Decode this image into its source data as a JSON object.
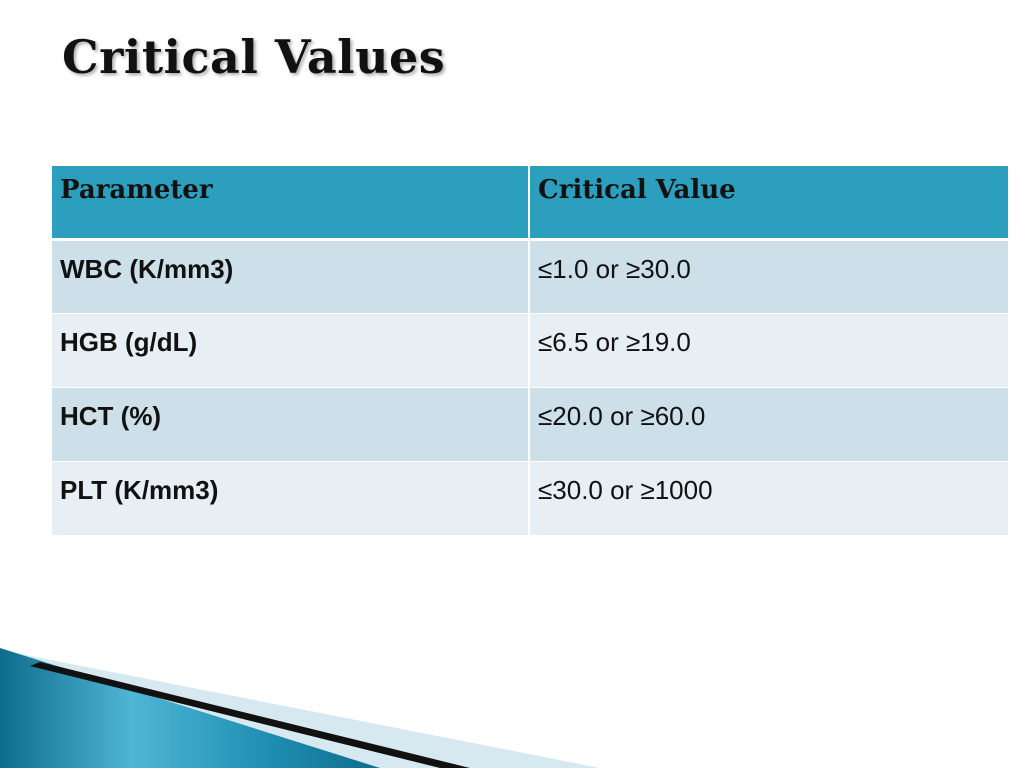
{
  "slide": {
    "title": "Critical Values"
  },
  "table": {
    "headers": [
      "Parameter",
      "Critical Value"
    ],
    "rows": [
      {
        "parameter": "WBC (K/mm3)",
        "critical_value": "≤1.0 or ≥30.0"
      },
      {
        "parameter": "HGB (g/dL)",
        "critical_value": "≤6.5 or ≥19.0"
      },
      {
        "parameter": "HCT (%)",
        "critical_value": "≤20.0 or ≥60.0"
      },
      {
        "parameter": "PLT (K/mm3)",
        "critical_value": "≤30.0 or ≥1000"
      }
    ]
  },
  "colors": {
    "header_bg": "#2c9fbe",
    "row_odd_bg": "#cde0ea",
    "row_even_bg": "#e7eef4",
    "accent_dark": "#0e6d8c",
    "accent_light": "#5fc0de"
  }
}
